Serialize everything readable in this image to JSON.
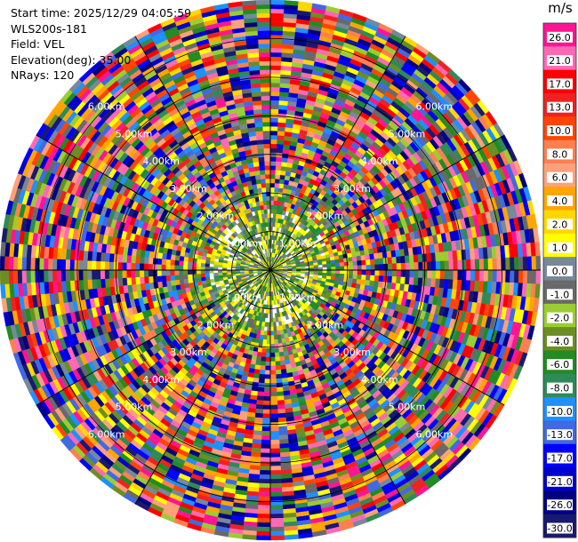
{
  "header": {
    "start_time": "Start time: 2025/12/29 04:05:59",
    "instrument": "WLS200s-181",
    "field": "Field: VEL",
    "elevation": "Elevation(deg): 35.00",
    "nrays": "NRays: 120"
  },
  "chart_data": {
    "type": "heatmap",
    "projection": "polar-ppi",
    "field": "VEL",
    "n_rays": 120,
    "elevation_deg": 35.0,
    "max_range_km": 7.0,
    "range_ring_labels": [
      "1.00km",
      "2.00km",
      "3.00km",
      "4.00km",
      "5.00km",
      "6.00km"
    ],
    "colorbar": {
      "unit": "m/s",
      "orientation": "vertical",
      "range": [
        -30.0,
        30.0
      ],
      "ticks": [
        26.0,
        21.0,
        17.0,
        13.0,
        10.0,
        8.0,
        6.0,
        4.0,
        2.0,
        1.0,
        0.0,
        -1.0,
        -2.0,
        -4.0,
        -6.0,
        -8.0,
        -10.0,
        -13.0,
        -17.0,
        -21.0,
        -26.0,
        -30.0
      ],
      "tick_labels": [
        "26.0",
        "21.0",
        "17.0",
        "13.0",
        "10.0",
        "8.0",
        "6.0",
        "4.0",
        "2.0",
        "1.0",
        "0.0",
        "-1.0",
        "-2.0",
        "-4.0",
        "-6.0",
        "-8.0",
        "-10.0",
        "-13.0",
        "-17.0",
        "-21.0",
        "-26.0",
        "-30.0"
      ],
      "colors_top_to_bottom": [
        "#ff1493",
        "#ff69b4",
        "#ff0000",
        "#ee2222",
        "#ff4500",
        "#ff7f50",
        "#ffa07a",
        "#ffa500",
        "#ffd700",
        "#ffff00",
        "#778899",
        "#696969",
        "#9acd32",
        "#6b8e23",
        "#228b22",
        "#2e8b57",
        "#1e90ff",
        "#4169e1",
        "#0000ff",
        "#0000cd",
        "#000080",
        "#191970"
      ]
    }
  }
}
